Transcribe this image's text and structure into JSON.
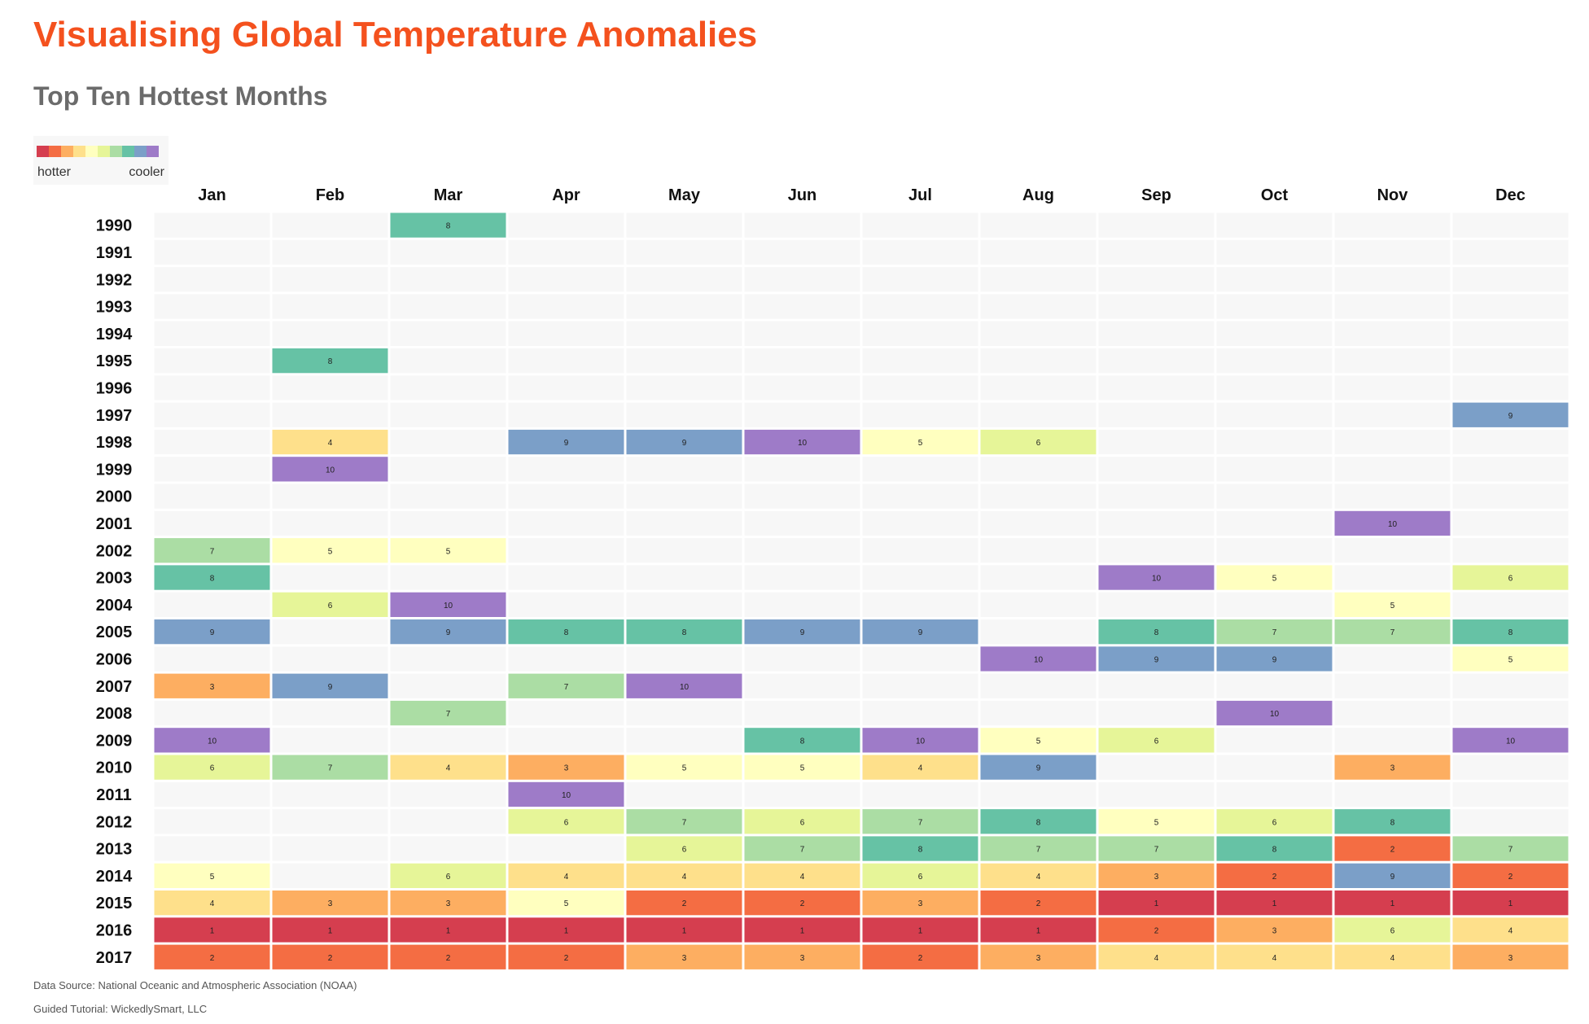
{
  "title": "Visualising Global Temperature Anomalies",
  "subtitle": "Top Ten Hottest Months",
  "legend": {
    "hotter_label": "hotter",
    "cooler_label": "cooler",
    "colors": [
      "#d53e4f",
      "#f46d43",
      "#fdae61",
      "#fee08b",
      "#ffffbf",
      "#e6f598",
      "#abdda4",
      "#66c2a5",
      "#7b9fc8",
      "#9e7bc8"
    ]
  },
  "footer": {
    "source": "Data Source: National Oceanic and Atmospheric Association (NOAA)",
    "tutorial": "Guided Tutorial: WickedlySmart, LLC"
  },
  "chart_data": {
    "type": "heatmap",
    "x_categories": [
      "Jan",
      "Feb",
      "Mar",
      "Apr",
      "May",
      "Jun",
      "Jul",
      "Aug",
      "Sep",
      "Oct",
      "Nov",
      "Dec"
    ],
    "y_categories": [
      "1990",
      "1991",
      "1992",
      "1993",
      "1994",
      "1995",
      "1996",
      "1997",
      "1998",
      "1999",
      "2000",
      "2001",
      "2002",
      "2003",
      "2004",
      "2005",
      "2006",
      "2007",
      "2008",
      "2009",
      "2010",
      "2011",
      "2012",
      "2013",
      "2014",
      "2015",
      "2016",
      "2017"
    ],
    "empty_cell_color": "#f7f7f7",
    "rank_colors": {
      "1": "#d53e4f",
      "2": "#f46d43",
      "3": "#fdae61",
      "4": "#fee08b",
      "5": "#ffffbf",
      "6": "#e6f598",
      "7": "#abdda4",
      "8": "#66c2a5",
      "9": "#7b9fc8",
      "10": "#9e7bc8"
    },
    "rows": [
      [
        null,
        null,
        8,
        null,
        null,
        null,
        null,
        null,
        null,
        null,
        null,
        null
      ],
      [
        null,
        null,
        null,
        null,
        null,
        null,
        null,
        null,
        null,
        null,
        null,
        null
      ],
      [
        null,
        null,
        null,
        null,
        null,
        null,
        null,
        null,
        null,
        null,
        null,
        null
      ],
      [
        null,
        null,
        null,
        null,
        null,
        null,
        null,
        null,
        null,
        null,
        null,
        null
      ],
      [
        null,
        null,
        null,
        null,
        null,
        null,
        null,
        null,
        null,
        null,
        null,
        null
      ],
      [
        null,
        8,
        null,
        null,
        null,
        null,
        null,
        null,
        null,
        null,
        null,
        null
      ],
      [
        null,
        null,
        null,
        null,
        null,
        null,
        null,
        null,
        null,
        null,
        null,
        null
      ],
      [
        null,
        null,
        null,
        null,
        null,
        null,
        null,
        null,
        null,
        null,
        null,
        9
      ],
      [
        null,
        4,
        null,
        9,
        9,
        10,
        5,
        6,
        null,
        null,
        null,
        null
      ],
      [
        null,
        10,
        null,
        null,
        null,
        null,
        null,
        null,
        null,
        null,
        null,
        null
      ],
      [
        null,
        null,
        null,
        null,
        null,
        null,
        null,
        null,
        null,
        null,
        null,
        null
      ],
      [
        null,
        null,
        null,
        null,
        null,
        null,
        null,
        null,
        null,
        null,
        10,
        null
      ],
      [
        7,
        5,
        5,
        null,
        null,
        null,
        null,
        null,
        null,
        null,
        null,
        null
      ],
      [
        8,
        null,
        null,
        null,
        null,
        null,
        null,
        null,
        10,
        5,
        null,
        6
      ],
      [
        null,
        6,
        10,
        null,
        null,
        null,
        null,
        null,
        null,
        null,
        5,
        null
      ],
      [
        9,
        null,
        9,
        8,
        8,
        9,
        9,
        null,
        8,
        7,
        7,
        8
      ],
      [
        null,
        null,
        null,
        null,
        null,
        null,
        null,
        10,
        9,
        9,
        null,
        5
      ],
      [
        3,
        9,
        null,
        7,
        10,
        null,
        null,
        null,
        null,
        null,
        null,
        null
      ],
      [
        null,
        null,
        7,
        null,
        null,
        null,
        null,
        null,
        null,
        10,
        null,
        null
      ],
      [
        10,
        null,
        null,
        null,
        null,
        8,
        10,
        5,
        6,
        null,
        null,
        10
      ],
      [
        6,
        7,
        4,
        3,
        5,
        5,
        4,
        9,
        null,
        null,
        3,
        null
      ],
      [
        null,
        null,
        null,
        10,
        null,
        null,
        null,
        null,
        null,
        null,
        null,
        null
      ],
      [
        null,
        null,
        null,
        6,
        7,
        6,
        7,
        8,
        5,
        6,
        8,
        null
      ],
      [
        null,
        null,
        null,
        null,
        6,
        7,
        8,
        7,
        7,
        8,
        2,
        7
      ],
      [
        5,
        null,
        6,
        4,
        4,
        4,
        6,
        4,
        3,
        2,
        9,
        2
      ],
      [
        4,
        3,
        3,
        5,
        2,
        2,
        3,
        2,
        1,
        1,
        1,
        1
      ],
      [
        1,
        1,
        1,
        1,
        1,
        1,
        1,
        1,
        2,
        3,
        6,
        4
      ],
      [
        2,
        2,
        2,
        2,
        3,
        3,
        2,
        3,
        4,
        4,
        4,
        3
      ]
    ]
  }
}
